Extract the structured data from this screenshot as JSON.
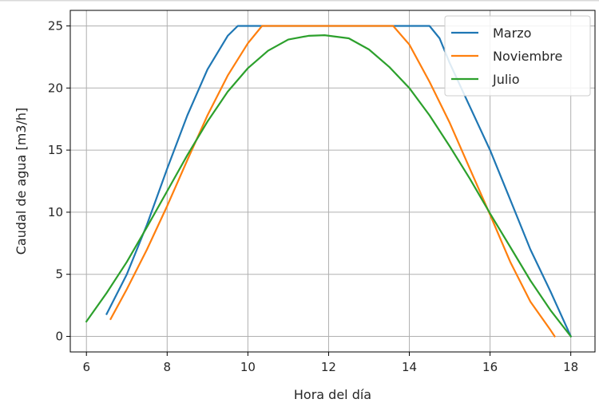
{
  "chart_data": {
    "type": "line",
    "xlabel": "Hora del día",
    "ylabel": "Caudal de agua [m3/h]",
    "xlim": [
      5.6,
      18.6
    ],
    "ylim": [
      -1.25,
      26.25
    ],
    "xticks": [
      6,
      8,
      10,
      12,
      14,
      16,
      18
    ],
    "yticks": [
      0,
      5,
      10,
      15,
      20,
      25
    ],
    "grid": true,
    "legend_position": "top-right",
    "colors": {
      "Marzo": "#1f77b4",
      "Noviembre": "#ff7f0e",
      "Julio": "#2ca02c"
    },
    "series": [
      {
        "name": "Marzo",
        "x": [
          6.5,
          7.0,
          7.5,
          8.0,
          8.5,
          9.0,
          9.5,
          9.75,
          10.0,
          11.0,
          12.0,
          13.0,
          14.0,
          14.5,
          14.75,
          15.0,
          15.5,
          16.0,
          16.5,
          17.0,
          17.5,
          18.0
        ],
        "y": [
          1.8,
          5.0,
          9.0,
          13.5,
          17.8,
          21.5,
          24.2,
          25,
          25,
          25,
          25,
          25,
          25,
          25,
          24.0,
          22.0,
          18.5,
          15.0,
          11.0,
          7.0,
          3.6,
          0
        ]
      },
      {
        "name": "Noviembre",
        "x": [
          6.6,
          7.0,
          7.5,
          8.0,
          8.5,
          9.0,
          9.5,
          10.0,
          10.35,
          11.0,
          12.0,
          13.0,
          13.6,
          14.0,
          14.5,
          15.0,
          15.5,
          16.0,
          16.5,
          17.0,
          17.5,
          17.6
        ],
        "y": [
          1.4,
          3.8,
          7.0,
          10.5,
          14.2,
          17.8,
          21.0,
          23.6,
          25,
          25,
          25,
          25,
          25,
          23.5,
          20.5,
          17.2,
          13.5,
          9.8,
          6.0,
          2.8,
          0.5,
          0
        ]
      },
      {
        "name": "Julio",
        "x": [
          6.0,
          6.5,
          7.0,
          7.5,
          8.0,
          8.5,
          9.0,
          9.5,
          10.0,
          10.5,
          11.0,
          11.5,
          11.9,
          12.5,
          13.0,
          13.5,
          14.0,
          14.5,
          15.0,
          15.5,
          16.0,
          16.5,
          17.0,
          17.5,
          18.0
        ],
        "y": [
          1.2,
          3.5,
          6.0,
          8.8,
          11.7,
          14.6,
          17.3,
          19.7,
          21.6,
          23.0,
          23.9,
          24.2,
          24.25,
          24.0,
          23.1,
          21.7,
          20.0,
          17.8,
          15.3,
          12.7,
          9.9,
          7.2,
          4.5,
          2.1,
          0
        ]
      }
    ]
  }
}
